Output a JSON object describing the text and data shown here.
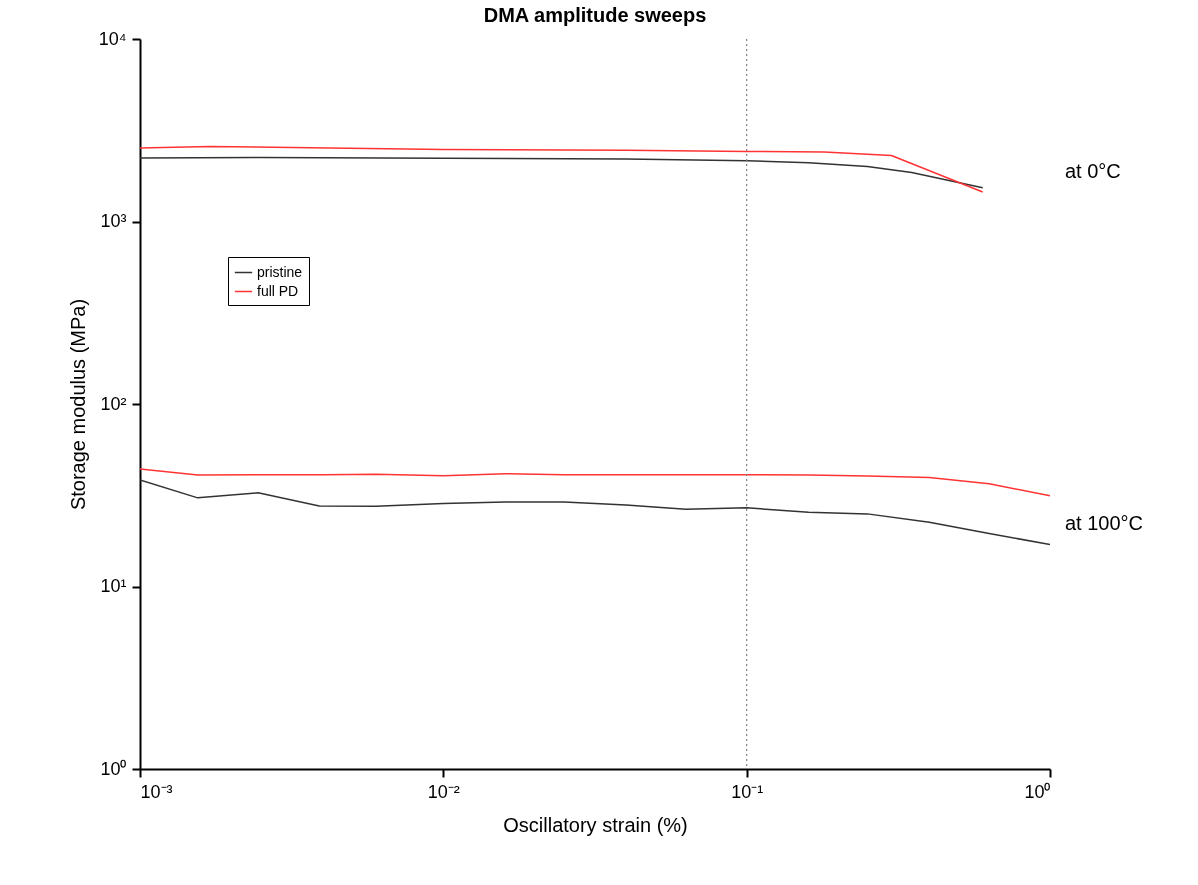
{
  "chart_data": {
    "type": "line",
    "title": "DMA amplitude sweeps",
    "xlabel": "Oscillatory strain (%)",
    "ylabel": "Storage modulus (MPa)",
    "log": "xy",
    "grid": false,
    "legend": "top left",
    "line_style": "solid",
    "marker": "none",
    "xlim": [
      0.001,
      1
    ],
    "ylim": [
      1,
      10000
    ],
    "xticks": [
      {
        "value": 0.001,
        "label": "10⁻³"
      },
      {
        "value": 0.01,
        "label": "10⁻²"
      },
      {
        "value": 0.1,
        "label": "10⁻¹"
      },
      {
        "value": 1,
        "label": "10⁰"
      }
    ],
    "yticks": [
      {
        "value": 1,
        "label": "10⁰"
      },
      {
        "value": 10,
        "label": "10¹"
      },
      {
        "value": 100,
        "label": "10²"
      },
      {
        "value": 1000,
        "label": "10³"
      },
      {
        "value": 10000,
        "label": "10⁴"
      }
    ],
    "series": [
      {
        "name": "pristine",
        "color": "#333333",
        "x": [
          0.001,
          0.0025,
          0.01,
          0.04,
          0.1,
          0.16,
          0.25,
          0.35,
          0.6
        ],
        "values": [
          2230,
          2240,
          2220,
          2200,
          2150,
          2100,
          2000,
          1855,
          1530
        ]
      },
      {
        "name": "full PD",
        "color": "#ff3333",
        "x": [
          0.001,
          0.0017,
          0.01,
          0.04,
          0.1,
          0.18,
          0.3,
          0.6
        ],
        "values": [
          2530,
          2580,
          2480,
          2460,
          2420,
          2400,
          2300,
          1450
        ]
      },
      {
        "color": "#333333",
        "x": [
          0.001,
          0.00155,
          0.00245,
          0.0039,
          0.006,
          0.01,
          0.016,
          0.025,
          0.04,
          0.063,
          0.1,
          0.16,
          0.25,
          0.4,
          0.63,
          1.0
        ],
        "values": [
          38.4,
          30.6,
          32.6,
          27.6,
          27.5,
          28.5,
          29,
          29,
          28,
          26.5,
          27,
          25.5,
          25,
          22.5,
          19.5,
          17
        ]
      },
      {
        "color": "#ff3333",
        "x": [
          0.001,
          0.00155,
          0.0025,
          0.004,
          0.006,
          0.01,
          0.016,
          0.025,
          0.04,
          0.063,
          0.1,
          0.16,
          0.25,
          0.4,
          0.63,
          1.0
        ],
        "values": [
          44,
          40.8,
          41,
          41,
          41.2,
          40.5,
          41.5,
          41,
          41,
          41,
          41,
          40.8,
          40.3,
          39.5,
          36.6,
          31.4
        ]
      }
    ],
    "ref_lines": [
      {
        "axis": "x",
        "value": 0.1,
        "color": "#808080",
        "line_style": "dotted"
      }
    ],
    "annotations": [
      "at 0°C",
      "at 100°C"
    ]
  }
}
